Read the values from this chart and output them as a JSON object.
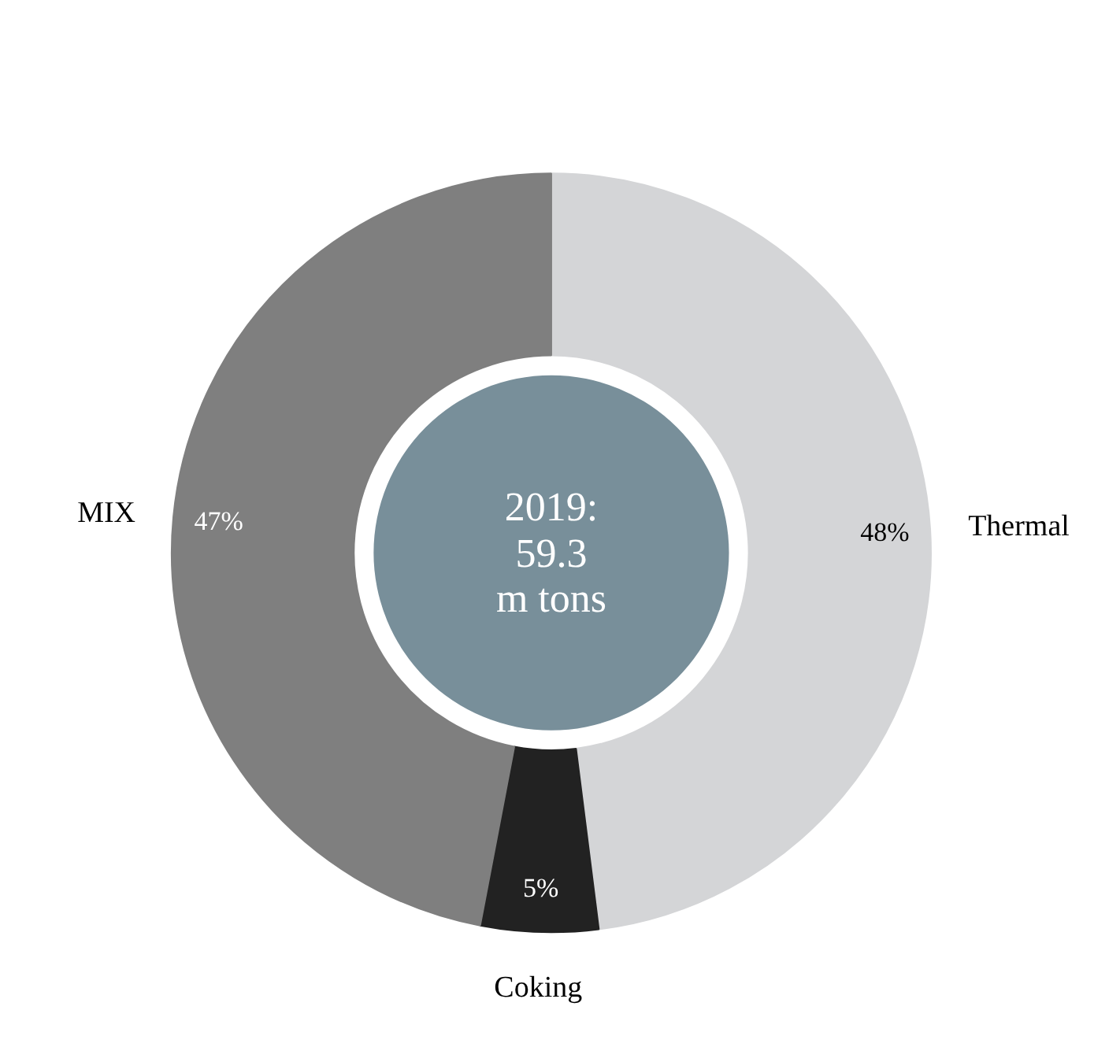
{
  "chart_data": {
    "type": "donut",
    "categories": [
      "Thermal",
      "Coking",
      "MIX"
    ],
    "values": [
      48,
      5,
      47
    ],
    "colors": [
      "#d4d5d7",
      "#222222",
      "#7f7f7f"
    ],
    "value_labels": [
      "48%",
      "5%",
      "47%"
    ],
    "annotations": [
      "2019:\n59.3\nm tons"
    ]
  }
}
